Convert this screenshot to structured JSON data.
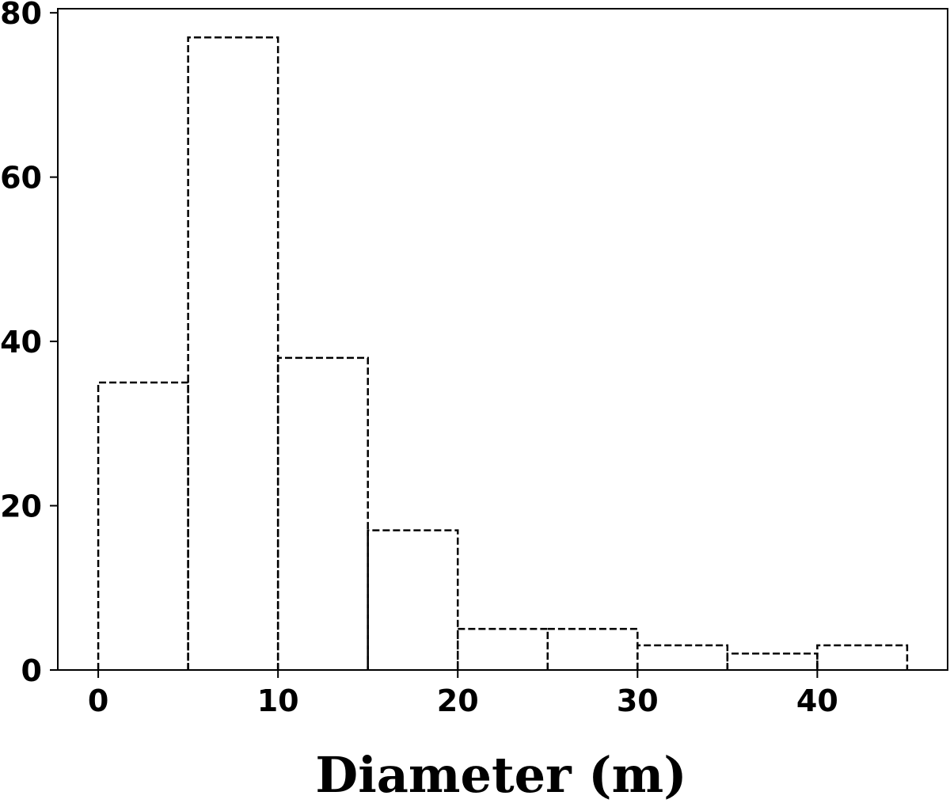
{
  "chart_data": {
    "type": "bar",
    "style": "histogram, dashed black outline, no fill",
    "bins": [
      {
        "x0": 0,
        "x1": 5,
        "value": 35
      },
      {
        "x0": 5,
        "x1": 10,
        "value": 77
      },
      {
        "x0": 10,
        "x1": 15,
        "value": 38
      },
      {
        "x0": 15,
        "x1": 20,
        "value": 17
      },
      {
        "x0": 20,
        "x1": 25,
        "value": 5
      },
      {
        "x0": 25,
        "x1": 30,
        "value": 5
      },
      {
        "x0": 30,
        "x1": 35,
        "value": 3
      },
      {
        "x0": 35,
        "x1": 40,
        "value": 2
      },
      {
        "x0": 40,
        "x1": 45,
        "value": 3
      }
    ],
    "title": "",
    "xlabel": "Diameter (m)",
    "ylabel": "",
    "xlim": [
      -2.25,
      47.25
    ],
    "ylim": [
      0,
      80.5
    ],
    "xticks": [
      0,
      10,
      20,
      30,
      40
    ],
    "yticks": [
      0,
      20,
      40,
      60,
      80
    ],
    "grid": false,
    "legend": "none",
    "colors": {
      "bar_edge": "#000000",
      "axis": "#000000",
      "background": "#ffffff"
    }
  }
}
